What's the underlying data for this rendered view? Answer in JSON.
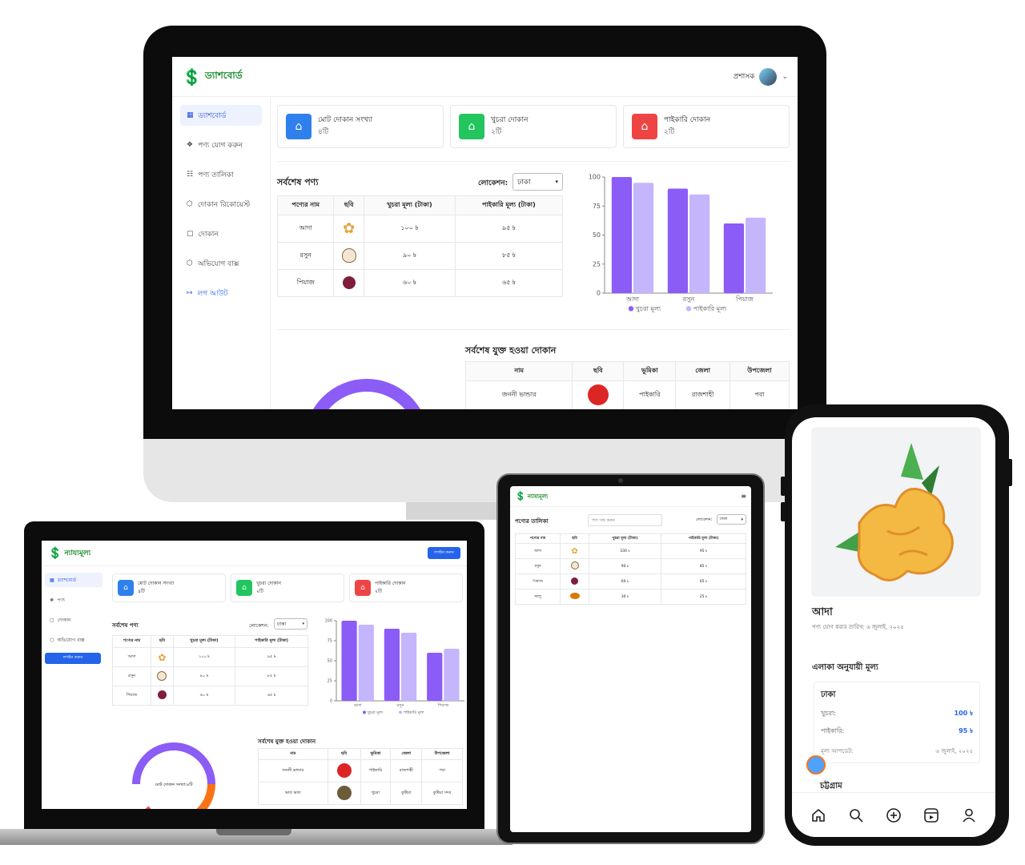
{
  "desktop": {
    "brand": "ড্যাশবোর্ড",
    "user_label": "প্রশাসক",
    "sidebar": [
      {
        "label": "ড্যাশবোর্ড",
        "icon": "grid-icon"
      },
      {
        "label": "পণ্য যোগ করুন",
        "icon": "cubes-icon"
      },
      {
        "label": "পণ্য তালিকা",
        "icon": "clipboard-icon"
      },
      {
        "label": "দোকান রিকোয়েস্ট",
        "icon": "box-icon"
      },
      {
        "label": "দোকান",
        "icon": "store-icon"
      },
      {
        "label": "অভিযোগ বাক্স",
        "icon": "inbox-icon"
      },
      {
        "label": "লগ আউট",
        "icon": "logout-icon"
      }
    ],
    "stats": [
      {
        "title": "মোট দোকান সংখ্যা",
        "value": "৪টি",
        "color": "#2f80ed"
      },
      {
        "title": "খুচরা দোকান",
        "value": "২টি",
        "color": "#22c55e"
      },
      {
        "title": "পাইকারি দোকান",
        "value": "২টি",
        "color": "#ef4444"
      }
    ],
    "latest_products_title": "সর্বশেষ পণ্য",
    "location_label": "লোকেশন:",
    "location_value": "ঢাকা",
    "product_headers": [
      "পণ্যের নাম",
      "ছবি",
      "খুচরা মূল্য (টাকা)",
      "পাইকারি মূল্য (টাকা)"
    ],
    "products": [
      {
        "name": "আদা",
        "image": "ginger",
        "retail": "১০০ ৳",
        "wholesale": "৯৫ ৳"
      },
      {
        "name": "রসুন",
        "image": "garlic",
        "retail": "৯০ ৳",
        "wholesale": "৮৫ ৳"
      },
      {
        "name": "পিয়াজ",
        "image": "onion",
        "retail": "৬০ ৳",
        "wholesale": "৬৫ ৳"
      }
    ],
    "shops_title": "সর্বশেষ যুক্ত হওয়া দোকান",
    "shop_headers": [
      "নাম",
      "ছবি",
      "ভূমিকা",
      "জেলা",
      "উপজেলা"
    ],
    "shops": [
      {
        "name": "জননী ভান্ডার",
        "role": "পাইকারি",
        "district": "রাজশাহী",
        "upazila": "পবা"
      }
    ]
  },
  "laptop": {
    "brand": "ন্যায্যমূল্য",
    "login_button": "লগইন করুন",
    "sidebar": [
      {
        "label": "ড্যাশবোর্ড",
        "icon": "grid-icon"
      },
      {
        "label": "পণ্য",
        "icon": "cubes-icon"
      },
      {
        "label": "দোকান",
        "icon": "store-icon"
      },
      {
        "label": "অভিযোগ বাক্স",
        "icon": "inbox-icon"
      }
    ],
    "sidebar_login": "লগইন করুন",
    "donut_label": "মোট দোকান সংখ্যা:৪টি",
    "shops": [
      {
        "name": "জননী ভান্ডার",
        "role": "পাইকারি",
        "district": "রাজশাহী",
        "upazila": "পবা"
      },
      {
        "name": "ভাত ভাত",
        "role": "খুচরা",
        "district": "কুষ্টিয়া",
        "upazila": "কুষ্টিয়া সদর"
      }
    ]
  },
  "tablet": {
    "brand": "ন্যায্যমূল্য",
    "title": "পণ্যের তালিকা",
    "search_placeholder": "পণ্য সার্চ করুন",
    "location_label": "লোকেশন:",
    "location_value": "ঢাকা",
    "headers": [
      "পণ্যের নাম",
      "ছবি",
      "খুচরা মূল্য (টাকা)",
      "পাইকারি মূল্য (টাকা)"
    ],
    "rows": [
      {
        "name": "আদা",
        "image": "ginger",
        "retail": "100 ৳",
        "wholesale": "95 ৳"
      },
      {
        "name": "রসুন",
        "image": "garlic",
        "retail": "90 ৳",
        "wholesale": "85 ৳"
      },
      {
        "name": "পিয়াজ",
        "image": "onion",
        "retail": "60 ৳",
        "wholesale": "65 ৳"
      },
      {
        "name": "আলু",
        "image": "potato",
        "retail": "30 ৳",
        "wholesale": "25 ৳"
      }
    ]
  },
  "phone": {
    "product_name": "আদা",
    "added_date": "পণ্য যোগ করার তারিখ: ৬ জুলাই, ২০২৫",
    "area_price_title": "এলাকা অনুযায়ী মূল্য",
    "areas": [
      {
        "name": "ঢাকা",
        "retail_label": "খুচরা:",
        "retail": "100 ৳",
        "wholesale_label": "পাইকারি:",
        "wholesale": "95 ৳",
        "updated_label": "মূল্য আপডেট:",
        "updated": "৬ জুলাই, ২০২৫"
      },
      {
        "name": "চট্টগ্রাম"
      }
    ],
    "nav": [
      "home-icon",
      "search-icon",
      "plus-circle-icon",
      "reels-icon",
      "profile-icon"
    ]
  },
  "chart_data": {
    "type": "bar",
    "categories": [
      "আদা",
      "রসুন",
      "পিয়াজ"
    ],
    "series": [
      {
        "name": "খুচরা মূল্য",
        "values": [
          100,
          90,
          60
        ],
        "color": "#8b5cf6"
      },
      {
        "name": "পাইকারি মূল্য",
        "values": [
          95,
          85,
          65
        ],
        "color": "#c4b5fd"
      }
    ],
    "yticks": [
      "0",
      "25",
      "50",
      "75",
      "100"
    ],
    "ylim": [
      0,
      100
    ],
    "legend": "bottom"
  }
}
